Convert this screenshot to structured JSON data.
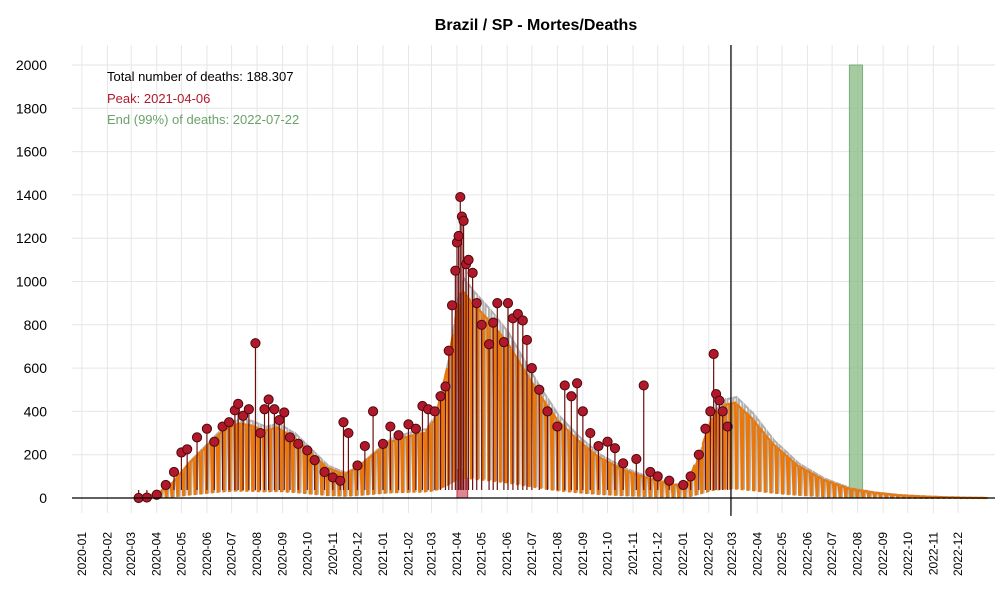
{
  "colors": {
    "observed_point": "#B2182B",
    "observed_stem": "#6b0f0f",
    "fit_line": "#E8780C",
    "fit_shadow": "#b0b0b0",
    "peak_band": "#d9737f",
    "end_band": "#8fbf8a",
    "grid": "#e6e6e6",
    "annot_total": "#000000",
    "annot_peak": "#B2182B",
    "annot_end": "#6aa36a"
  },
  "chart_data": {
    "type": "line",
    "title": "Brazil / SP - Mortes/Deaths",
    "xlabel": "",
    "ylabel": "",
    "ylim": [
      0,
      2000
    ],
    "xlim": [
      "2019-12-20",
      "2023-01-15"
    ],
    "grid": true,
    "y_ticks": [
      "0",
      "200",
      "400",
      "600",
      "800",
      "1000",
      "1200",
      "1400",
      "1600",
      "1800",
      "2000"
    ],
    "x_ticks": [
      "2020-01",
      "2020-02",
      "2020-03",
      "2020-04",
      "2020-05",
      "2020-06",
      "2020-07",
      "2020-08",
      "2020-09",
      "2020-10",
      "2020-11",
      "2020-12",
      "2021-01",
      "2021-02",
      "2021-03",
      "2021-04",
      "2021-05",
      "2021-06",
      "2021-07",
      "2021-08",
      "2021-09",
      "2021-10",
      "2021-11",
      "2021-12",
      "2022-01",
      "2022-02",
      "2022-03",
      "2022-04",
      "2022-05",
      "2022-06",
      "2022-07",
      "2022-08",
      "2022-09",
      "2022-10",
      "2022-11",
      "2022-12"
    ],
    "current_date": "2022-02-28",
    "peak_band": [
      "2021-04-01",
      "2021-04-14"
    ],
    "end_band": [
      "2022-07-22",
      "2022-08-07"
    ],
    "annotations": {
      "total": "Total number of deaths: 188.307",
      "peak": "Peak: 2021-04-06",
      "end": "End (99%) of deaths: 2022-07-22"
    },
    "series": [
      {
        "kind": "observed",
        "points": [
          [
            "2020-03-10",
            0
          ],
          [
            "2020-03-20",
            2
          ],
          [
            "2020-04-01",
            15
          ],
          [
            "2020-04-12",
            60
          ],
          [
            "2020-04-22",
            120
          ],
          [
            "2020-05-01",
            210
          ],
          [
            "2020-05-08",
            225
          ],
          [
            "2020-05-20",
            280
          ],
          [
            "2020-06-01",
            320
          ],
          [
            "2020-06-10",
            260
          ],
          [
            "2020-06-20",
            330
          ],
          [
            "2020-06-28",
            350
          ],
          [
            "2020-07-05",
            405
          ],
          [
            "2020-07-09",
            435
          ],
          [
            "2020-07-15",
            380
          ],
          [
            "2020-07-22",
            410
          ],
          [
            "2020-07-30",
            715
          ],
          [
            "2020-08-05",
            300
          ],
          [
            "2020-08-10",
            410
          ],
          [
            "2020-08-15",
            455
          ],
          [
            "2020-08-22",
            410
          ],
          [
            "2020-08-28",
            360
          ],
          [
            "2020-09-03",
            395
          ],
          [
            "2020-09-10",
            280
          ],
          [
            "2020-09-20",
            250
          ],
          [
            "2020-10-01",
            220
          ],
          [
            "2020-10-10",
            175
          ],
          [
            "2020-10-22",
            120
          ],
          [
            "2020-11-01",
            95
          ],
          [
            "2020-11-10",
            80
          ],
          [
            "2020-11-14",
            350
          ],
          [
            "2020-11-20",
            300
          ],
          [
            "2020-12-01",
            150
          ],
          [
            "2020-12-10",
            240
          ],
          [
            "2020-12-20",
            400
          ],
          [
            "2021-01-01",
            250
          ],
          [
            "2021-01-10",
            330
          ],
          [
            "2021-01-20",
            290
          ],
          [
            "2021-02-01",
            340
          ],
          [
            "2021-02-10",
            320
          ],
          [
            "2021-02-18",
            425
          ],
          [
            "2021-02-25",
            410
          ],
          [
            "2021-03-05",
            400
          ],
          [
            "2021-03-12",
            470
          ],
          [
            "2021-03-18",
            515
          ],
          [
            "2021-03-22",
            680
          ],
          [
            "2021-03-26",
            890
          ],
          [
            "2021-03-30",
            1050
          ],
          [
            "2021-04-01",
            1180
          ],
          [
            "2021-04-03",
            1210
          ],
          [
            "2021-04-05",
            1390
          ],
          [
            "2021-04-07",
            1300
          ],
          [
            "2021-04-09",
            1280
          ],
          [
            "2021-04-12",
            1080
          ],
          [
            "2021-04-15",
            1100
          ],
          [
            "2021-04-20",
            1040
          ],
          [
            "2021-04-25",
            900
          ],
          [
            "2021-05-01",
            800
          ],
          [
            "2021-05-10",
            710
          ],
          [
            "2021-05-15",
            810
          ],
          [
            "2021-05-20",
            900
          ],
          [
            "2021-05-28",
            720
          ],
          [
            "2021-06-02",
            900
          ],
          [
            "2021-06-08",
            830
          ],
          [
            "2021-06-14",
            850
          ],
          [
            "2021-06-20",
            820
          ],
          [
            "2021-06-25",
            730
          ],
          [
            "2021-07-01",
            600
          ],
          [
            "2021-07-10",
            500
          ],
          [
            "2021-07-20",
            400
          ],
          [
            "2021-08-01",
            330
          ],
          [
            "2021-08-10",
            520
          ],
          [
            "2021-08-18",
            470
          ],
          [
            "2021-08-25",
            530
          ],
          [
            "2021-09-01",
            400
          ],
          [
            "2021-09-10",
            300
          ],
          [
            "2021-09-20",
            240
          ],
          [
            "2021-10-01",
            260
          ],
          [
            "2021-10-10",
            230
          ],
          [
            "2021-10-20",
            160
          ],
          [
            "2021-11-05",
            180
          ],
          [
            "2021-11-14",
            520
          ],
          [
            "2021-11-22",
            120
          ],
          [
            "2021-12-01",
            100
          ],
          [
            "2021-12-15",
            80
          ],
          [
            "2022-01-01",
            60
          ],
          [
            "2022-01-10",
            100
          ],
          [
            "2022-01-20",
            200
          ],
          [
            "2022-01-28",
            320
          ],
          [
            "2022-02-03",
            400
          ],
          [
            "2022-02-07",
            665
          ],
          [
            "2022-02-10",
            480
          ],
          [
            "2022-02-14",
            450
          ],
          [
            "2022-02-18",
            400
          ],
          [
            "2022-02-24",
            330
          ]
        ]
      },
      {
        "kind": "fit_envelope",
        "points": [
          [
            "2020-03-10",
            0
          ],
          [
            "2020-04-01",
            20
          ],
          [
            "2020-04-20",
            70
          ],
          [
            "2020-05-10",
            160
          ],
          [
            "2020-06-01",
            240
          ],
          [
            "2020-06-20",
            310
          ],
          [
            "2020-07-10",
            345
          ],
          [
            "2020-07-25",
            335
          ],
          [
            "2020-08-10",
            310
          ],
          [
            "2020-08-25",
            325
          ],
          [
            "2020-09-15",
            280
          ],
          [
            "2020-10-05",
            210
          ],
          [
            "2020-10-25",
            140
          ],
          [
            "2020-11-15",
            110
          ],
          [
            "2020-12-01",
            140
          ],
          [
            "2020-12-20",
            200
          ],
          [
            "2021-01-10",
            260
          ],
          [
            "2021-02-01",
            285
          ],
          [
            "2021-02-20",
            300
          ],
          [
            "2021-03-05",
            360
          ],
          [
            "2021-03-20",
            600
          ],
          [
            "2021-04-01",
            870
          ],
          [
            "2021-04-08",
            955
          ],
          [
            "2021-04-20",
            900
          ],
          [
            "2021-05-10",
            820
          ],
          [
            "2021-06-01",
            720
          ],
          [
            "2021-06-20",
            600
          ],
          [
            "2021-07-10",
            480
          ],
          [
            "2021-08-01",
            360
          ],
          [
            "2021-08-25",
            270
          ],
          [
            "2021-09-20",
            190
          ],
          [
            "2021-10-20",
            130
          ],
          [
            "2021-11-20",
            90
          ],
          [
            "2021-12-20",
            60
          ],
          [
            "2022-01-05",
            60
          ],
          [
            "2022-01-20",
            200
          ],
          [
            "2022-02-05",
            370
          ],
          [
            "2022-02-20",
            430
          ],
          [
            "2022-03-05",
            440
          ],
          [
            "2022-03-25",
            370
          ],
          [
            "2022-04-20",
            250
          ],
          [
            "2022-05-20",
            150
          ],
          [
            "2022-06-20",
            85
          ],
          [
            "2022-07-20",
            45
          ],
          [
            "2022-08-20",
            25
          ],
          [
            "2022-09-20",
            13
          ],
          [
            "2022-10-20",
            7
          ],
          [
            "2022-11-20",
            3
          ],
          [
            "2022-12-20",
            1
          ],
          [
            "2023-01-05",
            0
          ]
        ]
      }
    ]
  }
}
